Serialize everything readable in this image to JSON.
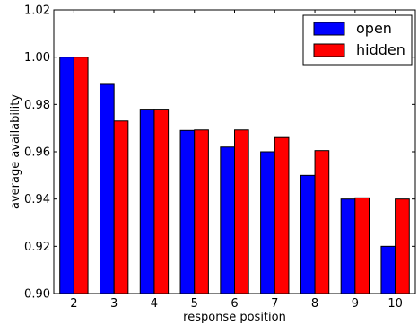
{
  "chart_data": {
    "type": "bar",
    "title": "",
    "xlabel": "response position",
    "ylabel": "average availability",
    "categories": [
      "2",
      "3",
      "4",
      "5",
      "6",
      "7",
      "8",
      "9",
      "10"
    ],
    "series": [
      {
        "name": "open",
        "color": "#0000ff",
        "values": [
          1.0,
          0.9885,
          0.978,
          0.969,
          0.962,
          0.96,
          0.95,
          0.94,
          0.92
        ]
      },
      {
        "name": "hidden",
        "color": "#ff0000",
        "values": [
          1.0,
          0.973,
          0.978,
          0.9692,
          0.9692,
          0.966,
          0.9605,
          0.9405,
          0.94
        ]
      }
    ],
    "ylim": [
      0.9,
      1.02
    ],
    "yticks": [
      "0.90",
      "0.92",
      "0.94",
      "0.96",
      "0.98",
      "1.00",
      "1.02"
    ],
    "grid": false,
    "legend_position": "top-right"
  }
}
